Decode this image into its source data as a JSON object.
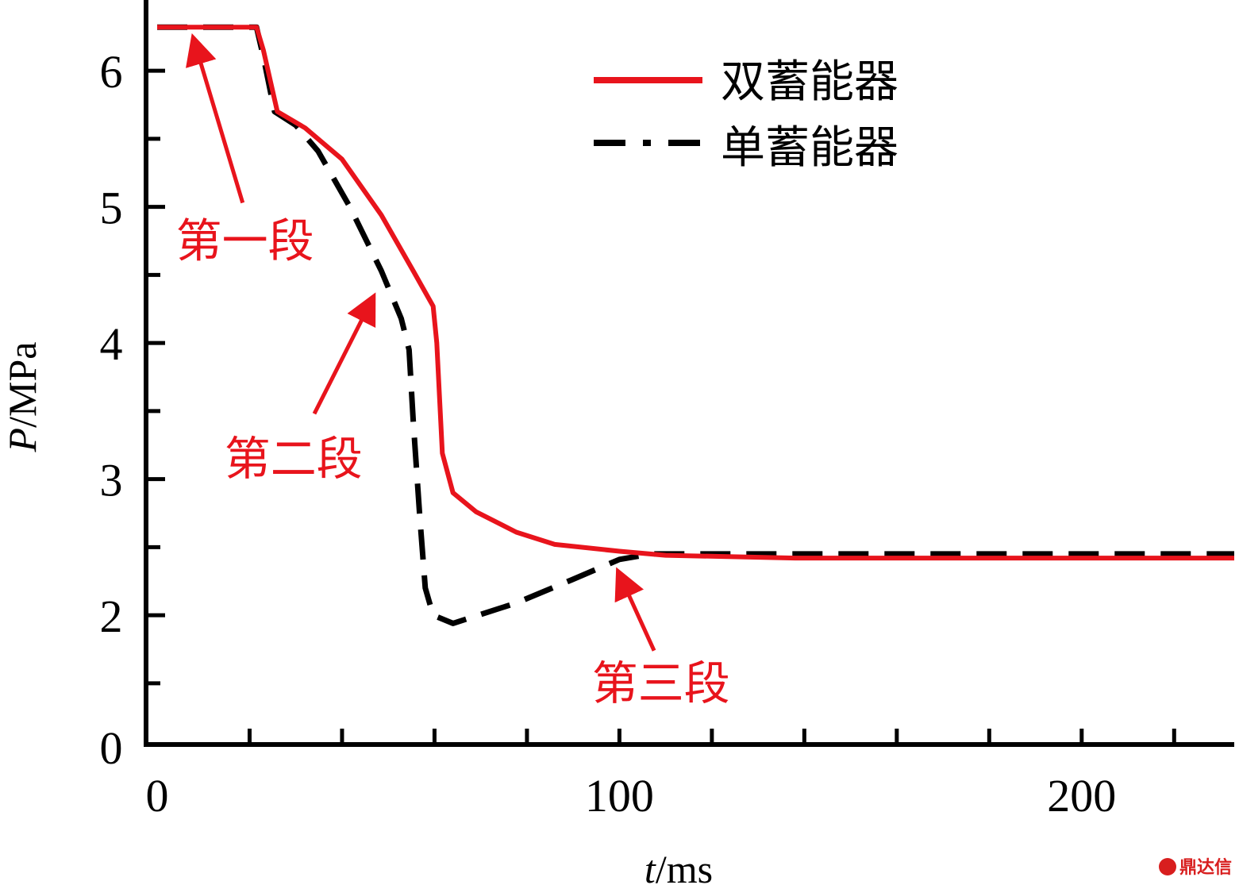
{
  "chart_data": {
    "type": "line",
    "xlabel": {
      "italic": "t",
      "rest": "/ms"
    },
    "ylabel": {
      "italic": "P",
      "rest": "/MPa"
    },
    "xlim": [
      -2.4,
      233
    ],
    "ylim": [
      1.05,
      6.52
    ],
    "xticks_major": [
      {
        "value": 0,
        "label": "0"
      },
      {
        "value": 100,
        "label": "100"
      },
      {
        "value": 200,
        "label": "200"
      }
    ],
    "xticks_minor": [
      20,
      40,
      60,
      80,
      100,
      120,
      140,
      160,
      180,
      200,
      220
    ],
    "yticks_major": [
      {
        "value": 2,
        "label": "2"
      },
      {
        "value": 3,
        "label": "3"
      },
      {
        "value": 4,
        "label": "4"
      },
      {
        "value": 5,
        "label": "5"
      },
      {
        "value": 6,
        "label": "6"
      }
    ],
    "yticks_minor": [
      1.5,
      2.5,
      3.5,
      4.5,
      5.5
    ],
    "y_origin_label": "0",
    "grid": false,
    "legend_position": "top-right",
    "series": [
      {
        "name": "双蓄能器",
        "color": "#e8141c",
        "style": "solid",
        "x": [
          0,
          21.5,
          23,
          26,
          32,
          40,
          48.5,
          55.4,
          59.7,
          60.5,
          61.7,
          64,
          69,
          77.7,
          86,
          100,
          110,
          138,
          233
        ],
        "y": [
          6.32,
          6.32,
          6.15,
          5.7,
          5.58,
          5.35,
          4.94,
          4.53,
          4.27,
          4.0,
          3.19,
          2.9,
          2.76,
          2.61,
          2.52,
          2.47,
          2.44,
          2.42,
          2.42
        ]
      },
      {
        "name": "单蓄能器",
        "color": "#000000",
        "style": "dashed",
        "x": [
          0,
          21.5,
          23,
          25.4,
          30,
          34.8,
          41.7,
          48.5,
          52.8,
          54.5,
          55.4,
          56.8,
          58,
          59.7,
          64,
          77.7,
          89.7,
          100,
          107,
          233
        ],
        "y": [
          6.32,
          6.32,
          6.1,
          5.7,
          5.6,
          5.41,
          5.0,
          4.53,
          4.18,
          3.95,
          3.43,
          2.73,
          2.2,
          2.0,
          1.94,
          2.09,
          2.26,
          2.41,
          2.45,
          2.45
        ]
      }
    ],
    "annotations": [
      {
        "text": "第一段",
        "x": 19,
        "y": 4.75,
        "arrow_from": [
          18.5,
          5.03
        ],
        "arrow_to": [
          8,
          6.22
        ]
      },
      {
        "text": "第二段",
        "x": 29.5,
        "y": 3.15,
        "arrow_from": [
          34,
          3.48
        ],
        "arrow_to": [
          46.5,
          4.32
        ]
      },
      {
        "text": "第三段",
        "x": 109,
        "y": 1.5,
        "arrow_from": [
          107.5,
          1.74
        ],
        "arrow_to": [
          100,
          2.3
        ]
      }
    ]
  },
  "watermark": "鼎达信"
}
